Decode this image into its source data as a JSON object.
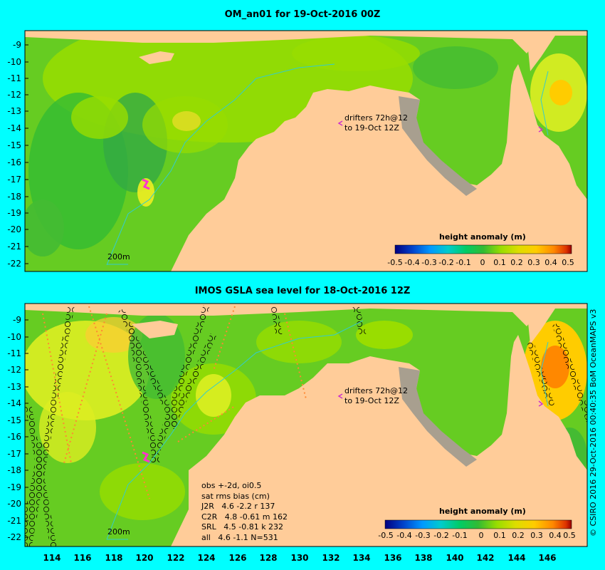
{
  "panels": [
    {
      "title": "OM_an01 for 19-Oct-2016 00Z",
      "y_ticks": [
        "-9",
        "-10",
        "-11",
        "-12",
        "-13",
        "-14",
        "-15",
        "-16",
        "-17",
        "-18",
        "-19",
        "-20",
        "-21",
        "-22"
      ],
      "drifters": [
        "drifters 72h@12",
        "to 19-Oct 12Z"
      ],
      "contour_label": "200m",
      "colorbar": {
        "title": "height anomaly (m)",
        "labels": [
          "-0.5",
          "-0.4",
          "-0.3",
          "-0.2",
          "-0.1",
          "0",
          "0.1",
          "0.2",
          "0.3",
          "0.4",
          "0.5"
        ]
      }
    },
    {
      "title": "IMOS GSLA sea level  for 18-Oct-2016 12Z",
      "y_ticks": [
        "-9",
        "-10",
        "-11",
        "-12",
        "-13",
        "-14",
        "-15",
        "-16",
        "-17",
        "-18",
        "-19",
        "-20",
        "-21",
        "-22"
      ],
      "drifters": [
        "drifters 72h@12",
        "to 19-Oct 12Z"
      ],
      "contour_label": "200m",
      "colorbar": {
        "title": "height anomaly (m)",
        "labels": [
          "-0.5",
          "-0.4",
          "-0.3",
          "-0.2",
          "-0.1",
          "0",
          "0.1",
          "0.2",
          "0.3",
          "0.4",
          "0.5"
        ]
      },
      "x_ticks": [
        "114",
        "116",
        "118",
        "120",
        "122",
        "124",
        "126",
        "128",
        "130",
        "132",
        "134",
        "136",
        "138",
        "140",
        "142",
        "144",
        "146"
      ],
      "stats": {
        "header1": "obs +-2d, oi0.5",
        "header2": "sat rms bias (cm)",
        "rows": [
          "J2R   4.6 -2.2 r 137",
          "C2R   4.8 -0.61 m 162",
          "SRL   4.5 -0.81 k 232",
          "all   4.6 -1.1 N=531"
        ]
      }
    }
  ],
  "credit": "© CSIRO 2016  29-Oct-2016 00:40:35 BoM OceanMAPS v3",
  "colors": {
    "background": "#00ffff",
    "land": "#ffcc99",
    "shelf_land": "#a89f8f",
    "contour": "#33cccc",
    "drifter": "#ff33cc",
    "colorbar_stops": [
      "#000080",
      "#0044cc",
      "#0099ff",
      "#00cccc",
      "#00cc66",
      "#33bb33",
      "#99dd00",
      "#dddd00",
      "#ffcc00",
      "#ff8800",
      "#dd3300",
      "#990000"
    ]
  }
}
